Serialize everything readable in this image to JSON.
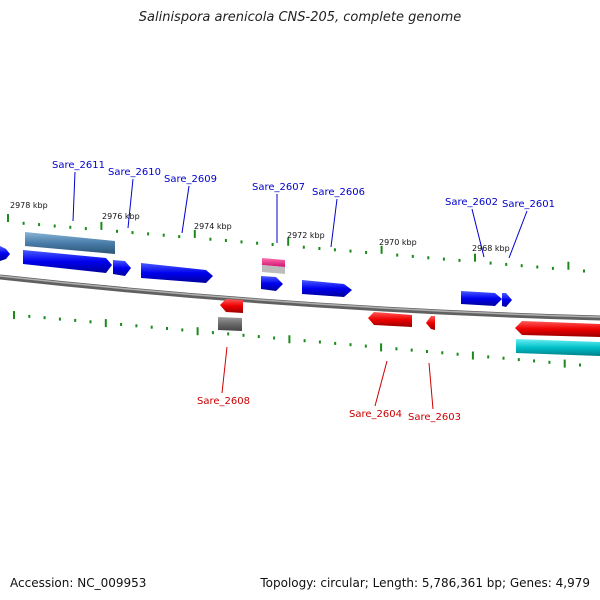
{
  "title": "Salinispora arenicola CNS-205, complete genome",
  "accession": "Accession: NC_009953",
  "summary": "Topology: circular; Length: 5,786,361 bp; Genes: 4,979",
  "ticks": [
    "2978 kbp",
    "2976 kbp",
    "2974 kbp",
    "2972 kbp",
    "2970 kbp",
    "2968 kbp"
  ],
  "genes_forward": [
    "Sare_2611",
    "Sare_2610",
    "Sare_2609",
    "Sare_2607",
    "Sare_2606",
    "Sare_2602",
    "Sare_2601"
  ],
  "genes_reverse": [
    "Sare_2608",
    "Sare_2604",
    "Sare_2603"
  ],
  "colors": {
    "forward": "#0000ee",
    "reverse": "#ee0000",
    "backbone": "#7a7a7a",
    "tick": "#1a8a1a",
    "steelblue": "#4a7eaa",
    "magenta": "#e0207a",
    "cyan": "#00c0c8",
    "gray_block": "#707070"
  }
}
